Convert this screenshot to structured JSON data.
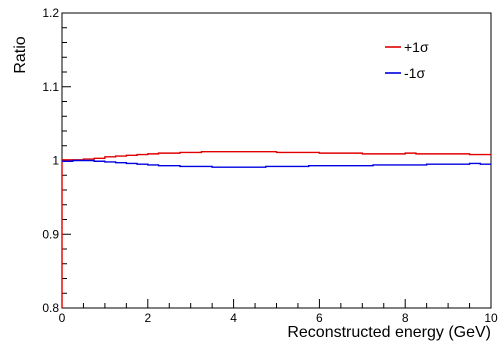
{
  "chart_data": {
    "type": "line",
    "title": "",
    "xlabel": "Reconstructed energy (GeV)",
    "ylabel": "Ratio",
    "xlim": [
      0,
      10
    ],
    "ylim": [
      0.8,
      1.2
    ],
    "x_major_ticks": [
      0,
      2,
      4,
      6,
      8,
      10
    ],
    "y_major_ticks": [
      0.8,
      0.9,
      1,
      1.1,
      1.2
    ],
    "x_tick_labels": [
      "0",
      "2",
      "4",
      "6",
      "8",
      "10"
    ],
    "y_tick_labels": [
      "0.8",
      "0.9",
      "1",
      "1.1",
      "1.2"
    ],
    "grid": false,
    "legend_position": "top-right",
    "bin_edges": [
      0,
      0.25,
      0.5,
      0.75,
      1,
      1.25,
      1.5,
      1.75,
      2,
      2.25,
      2.5,
      2.75,
      3,
      3.25,
      3.5,
      3.75,
      4,
      4.25,
      4.5,
      4.75,
      5,
      5.25,
      5.5,
      5.75,
      6,
      6.25,
      6.5,
      6.75,
      7,
      7.25,
      7.5,
      7.75,
      8,
      8.25,
      8.5,
      8.75,
      9,
      9.25,
      9.5,
      9.75,
      10
    ],
    "series": [
      {
        "name": "+1σ",
        "color": "#e00000",
        "start_value": 0.8,
        "values": [
          1.001,
          1.001,
          1.002,
          1.003,
          1.005,
          1.006,
          1.007,
          1.008,
          1.009,
          1.01,
          1.01,
          1.011,
          1.011,
          1.012,
          1.012,
          1.012,
          1.012,
          1.012,
          1.012,
          1.012,
          1.011,
          1.011,
          1.011,
          1.011,
          1.01,
          1.01,
          1.01,
          1.01,
          1.009,
          1.009,
          1.009,
          1.009,
          1.01,
          1.009,
          1.009,
          1.009,
          1.009,
          1.009,
          1.008,
          1.008
        ]
      },
      {
        "name": "-1σ",
        "color": "#0000e0",
        "values": [
          0.999,
          1.0,
          1.0,
          0.999,
          0.998,
          0.997,
          0.996,
          0.995,
          0.994,
          0.993,
          0.993,
          0.992,
          0.992,
          0.992,
          0.991,
          0.991,
          0.991,
          0.991,
          0.991,
          0.992,
          0.992,
          0.992,
          0.992,
          0.993,
          0.993,
          0.993,
          0.993,
          0.993,
          0.993,
          0.994,
          0.994,
          0.994,
          0.994,
          0.994,
          0.995,
          0.995,
          0.995,
          0.995,
          0.996,
          0.995
        ]
      }
    ]
  }
}
